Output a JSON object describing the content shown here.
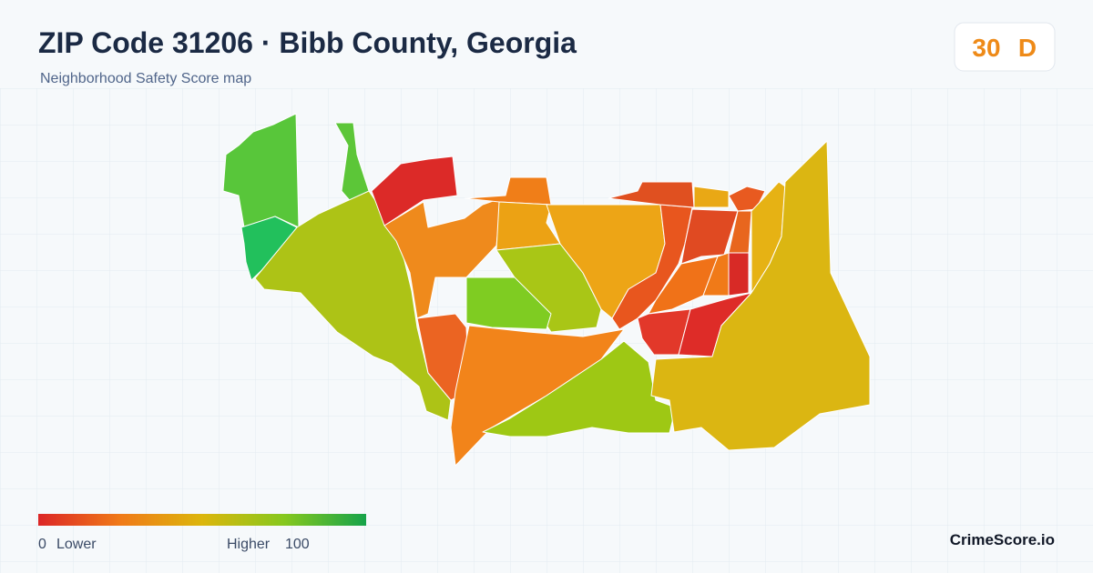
{
  "header": {
    "title": "ZIP Code 31206 · Bibb County, Georgia",
    "subtitle": "Neighborhood Safety Score map"
  },
  "badge": {
    "score": "30",
    "grade": "D"
  },
  "legend": {
    "min": "0",
    "min_label": "Lower",
    "max_label": "Higher",
    "max": "100"
  },
  "brand": "CrimeScore.io"
}
